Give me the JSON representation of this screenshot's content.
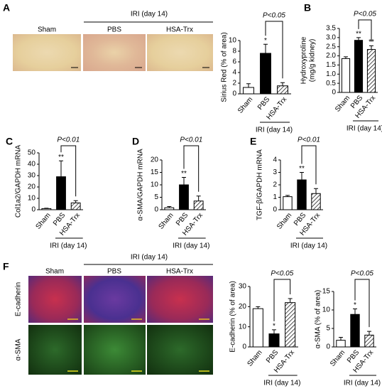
{
  "chart_data": [
    {
      "type": "bar",
      "ylabel": [
        "Sirius Red (% of area)"
      ],
      "categories": [
        "Sham",
        "PBS",
        "HSA-Trx"
      ],
      "values": [
        1.2,
        7.6,
        1.5
      ],
      "errors": [
        0.7,
        1.7,
        0.6
      ],
      "colors": [
        "#ffffff",
        "#000000",
        "#ffffff"
      ],
      "hatched": [
        false,
        false,
        true
      ],
      "stars": [
        null,
        "*",
        null
      ],
      "p_label": "P<0.05",
      "group_label": "IRI (day 14)",
      "ylim": [
        0,
        10
      ],
      "yticks": [
        0,
        2,
        4,
        6,
        8,
        10
      ]
    },
    {
      "type": "bar",
      "panel": "B",
      "ylabel": [
        "Hydroxyproline",
        "(mg/g kidney)"
      ],
      "categories": [
        "Sham",
        "PBS",
        "HSA-Trx"
      ],
      "values": [
        1.85,
        2.85,
        2.35
      ],
      "errors": [
        0.1,
        0.15,
        0.2
      ],
      "colors": [
        "#ffffff",
        "#000000",
        "#ffffff"
      ],
      "hatched": [
        false,
        false,
        true
      ],
      "stars": [
        null,
        "**",
        "**"
      ],
      "p_label": "P<0.05",
      "group_label": "IRI (day 14)",
      "ylim": [
        0,
        3.5
      ],
      "yticks": [
        0,
        0.5,
        {
          "value": 1,
          "label": "1.0"
        },
        1.5,
        {
          "value": 2,
          "label": "2.0"
        },
        2.5,
        {
          "value": 3,
          "label": "3.0"
        },
        3.5
      ]
    },
    {
      "type": "bar",
      "panel": "C",
      "ylabel": [
        "Col1a2/GAPDH mRNA"
      ],
      "categories": [
        "Sham",
        "PBS",
        "HSA-Trx"
      ],
      "values": [
        1,
        29,
        6
      ],
      "errors": [
        0.3,
        14,
        2
      ],
      "colors": [
        "#ffffff",
        "#000000",
        "#ffffff"
      ],
      "hatched": [
        false,
        false,
        true
      ],
      "stars": [
        null,
        "**",
        null
      ],
      "p_label": "P<0.01",
      "group_label": "IRI (day 14)",
      "ylim": [
        0,
        50
      ],
      "yticks": [
        0,
        10,
        20,
        30,
        40,
        50
      ]
    },
    {
      "type": "bar",
      "panel": "D",
      "ylabel": [
        "α-SMA/GAPDH mRNA"
      ],
      "categories": [
        "Sham",
        "PBS",
        "HSA-Trx"
      ],
      "values": [
        0.8,
        10,
        3.5
      ],
      "errors": [
        0.5,
        3,
        2
      ],
      "colors": [
        "#ffffff",
        "#000000",
        "#ffffff"
      ],
      "hatched": [
        false,
        false,
        true
      ],
      "stars": [
        null,
        "**",
        null
      ],
      "p_label": "P<0.01",
      "group_label": "IRI (day 14)",
      "ylim": [
        0,
        20
      ],
      "yticks": [
        0,
        5,
        10,
        15,
        20
      ]
    },
    {
      "type": "bar",
      "panel": "E",
      "ylabel": [
        "TGF-β/GAPDH mRNA"
      ],
      "categories": [
        "Sham",
        "PBS",
        "HSA-Trx"
      ],
      "values": [
        1.05,
        2.4,
        1.3
      ],
      "errors": [
        0.1,
        0.6,
        0.4
      ],
      "colors": [
        "#ffffff",
        "#000000",
        "#ffffff"
      ],
      "hatched": [
        false,
        false,
        true
      ],
      "stars": [
        null,
        "**",
        null
      ],
      "p_label": "P<0.01",
      "group_label": "IRI (day 14)",
      "ylim": [
        0,
        4
      ],
      "yticks": [
        0,
        1,
        2,
        3,
        4
      ]
    },
    {
      "type": "bar",
      "ylabel": [
        "E-cadherin (% of area)"
      ],
      "categories": [
        "Sham",
        "PBS",
        "HSA-Trx"
      ],
      "values": [
        19,
        6.5,
        22
      ],
      "errors": [
        1,
        2,
        2
      ],
      "colors": [
        "#ffffff",
        "#000000",
        "#ffffff"
      ],
      "hatched": [
        false,
        false,
        true
      ],
      "stars": [
        null,
        "*",
        null
      ],
      "p_label": "P<0.05",
      "group_label": "IRI (day 14)",
      "ylim": [
        0,
        30
      ],
      "yticks": [
        0,
        10,
        20,
        30
      ]
    },
    {
      "type": "bar",
      "ylabel": [
        "α-SMA (% of area)"
      ],
      "categories": [
        "Sham",
        "PBS",
        "HSA-Trx"
      ],
      "values": [
        1.8,
        8.8,
        3.2
      ],
      "errors": [
        0.8,
        1.5,
        1
      ],
      "colors": [
        "#ffffff",
        "#000000",
        "#ffffff"
      ],
      "hatched": [
        false,
        false,
        true
      ],
      "stars": [
        null,
        "*",
        null
      ],
      "p_label": "P<0.05",
      "group_label": "IRI (day 14)",
      "ylim": [
        0,
        15
      ],
      "yticks": [
        0,
        5,
        10,
        15
      ]
    }
  ],
  "micrographs": [
    {
      "panel": "A",
      "group_label": "IRI (day 14)",
      "columns": [
        "Sham",
        "PBS",
        "HSA-Trx"
      ]
    },
    {
      "panel": "F",
      "group_label": "IRI (day 14)",
      "columns": [
        "Sham",
        "PBS",
        "HSA-Trx"
      ],
      "rows": [
        "E-cadherin",
        "α-SMA"
      ]
    }
  ]
}
